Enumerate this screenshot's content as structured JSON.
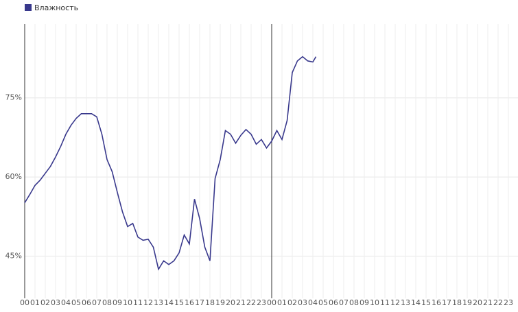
{
  "chart_data": {
    "type": "line",
    "series": [
      {
        "name": "Влажность",
        "color": "#38388c",
        "x": [
          0,
          0.5,
          1,
          1.5,
          2,
          2.5,
          3,
          3.5,
          4,
          4.5,
          5,
          5.5,
          6,
          6.5,
          7,
          7.5,
          8,
          8.5,
          9,
          9.5,
          10,
          10.5,
          11,
          11.5,
          12,
          12.5,
          13,
          13.5,
          14,
          14.5,
          15,
          15.5,
          16,
          16.5,
          17,
          17.5,
          18,
          18.5,
          19,
          19.5,
          20,
          20.5,
          21,
          21.5,
          22,
          22.5,
          23,
          23.5,
          24,
          24.5,
          25,
          25.5,
          26,
          26.5,
          27,
          27.5,
          28,
          28.3
        ],
        "values": [
          55.1,
          56.7,
          58.4,
          59.4,
          60.7,
          62,
          63.8,
          65.8,
          68.1,
          69.8,
          71.1,
          72,
          72,
          72,
          71.4,
          68.1,
          63.3,
          61,
          57.1,
          53.4,
          50.6,
          51.2,
          48.6,
          48,
          48.2,
          46.7,
          42.5,
          44.1,
          43.4,
          44.1,
          45.6,
          49,
          47.3,
          55.8,
          52.1,
          46.7,
          44.1,
          59.7,
          63.3,
          68.8,
          68.1,
          66.4,
          67.9,
          69,
          68.1,
          66.2,
          67.1,
          65.5,
          66.8,
          68.8,
          67.1,
          70.7,
          79.8,
          82,
          82.8,
          82,
          81.8,
          82.8
        ]
      }
    ],
    "xlim": [
      0,
      48
    ],
    "xticks": [
      {
        "value": 0,
        "label": "00"
      },
      {
        "value": 1,
        "label": "01"
      },
      {
        "value": 2,
        "label": "02"
      },
      {
        "value": 3,
        "label": "03"
      },
      {
        "value": 4,
        "label": "04"
      },
      {
        "value": 5,
        "label": "05"
      },
      {
        "value": 6,
        "label": "06"
      },
      {
        "value": 7,
        "label": "07"
      },
      {
        "value": 8,
        "label": "08"
      },
      {
        "value": 9,
        "label": "09"
      },
      {
        "value": 10,
        "label": "10"
      },
      {
        "value": 11,
        "label": "11"
      },
      {
        "value": 12,
        "label": "12"
      },
      {
        "value": 13,
        "label": "13"
      },
      {
        "value": 14,
        "label": "14"
      },
      {
        "value": 15,
        "label": "15"
      },
      {
        "value": 16,
        "label": "16"
      },
      {
        "value": 17,
        "label": "17"
      },
      {
        "value": 18,
        "label": "18"
      },
      {
        "value": 19,
        "label": "19"
      },
      {
        "value": 20,
        "label": "20"
      },
      {
        "value": 21,
        "label": "21"
      },
      {
        "value": 22,
        "label": "22"
      },
      {
        "value": 23,
        "label": "23"
      },
      {
        "value": 24,
        "label": "00"
      },
      {
        "value": 25,
        "label": "01"
      },
      {
        "value": 26,
        "label": "02"
      },
      {
        "value": 27,
        "label": "03"
      },
      {
        "value": 28,
        "label": "04"
      },
      {
        "value": 29,
        "label": "05"
      },
      {
        "value": 30,
        "label": "06"
      },
      {
        "value": 31,
        "label": "07"
      },
      {
        "value": 32,
        "label": "08"
      },
      {
        "value": 33,
        "label": "09"
      },
      {
        "value": 34,
        "label": "10"
      },
      {
        "value": 35,
        "label": "11"
      },
      {
        "value": 36,
        "label": "12"
      },
      {
        "value": 37,
        "label": "13"
      },
      {
        "value": 38,
        "label": "14"
      },
      {
        "value": 39,
        "label": "15"
      },
      {
        "value": 40,
        "label": "16"
      },
      {
        "value": 41,
        "label": "17"
      },
      {
        "value": 42,
        "label": "18"
      },
      {
        "value": 43,
        "label": "19"
      },
      {
        "value": 44,
        "label": "20"
      },
      {
        "value": 45,
        "label": "21"
      },
      {
        "value": 46,
        "label": "22"
      },
      {
        "value": 47,
        "label": "23"
      }
    ],
    "ylim": [
      37,
      89
    ],
    "yticks": [
      {
        "value": 45,
        "label": "45%"
      },
      {
        "value": 60,
        "label": "60%"
      },
      {
        "value": 75,
        "label": "75%"
      }
    ],
    "grid": true,
    "legend": "top-left"
  }
}
